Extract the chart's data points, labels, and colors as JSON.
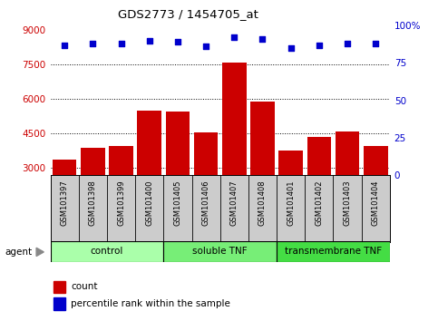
{
  "title": "GDS2773 / 1454705_at",
  "samples": [
    "GSM101397",
    "GSM101398",
    "GSM101399",
    "GSM101400",
    "GSM101405",
    "GSM101406",
    "GSM101407",
    "GSM101408",
    "GSM101401",
    "GSM101402",
    "GSM101403",
    "GSM101404"
  ],
  "counts": [
    3350,
    3900,
    3950,
    5500,
    5450,
    4550,
    7600,
    5900,
    3750,
    4350,
    4600,
    3950
  ],
  "percentiles": [
    87,
    88,
    88,
    90,
    89,
    86,
    92,
    91,
    85,
    87,
    88,
    88
  ],
  "bar_color": "#cc0000",
  "dot_color": "#0000cc",
  "ylim_left": [
    2700,
    9200
  ],
  "ylim_right": [
    0,
    100
  ],
  "yticks_left": [
    3000,
    4500,
    6000,
    7500,
    9000
  ],
  "yticks_right": [
    0,
    25,
    50,
    75,
    100
  ],
  "groups": [
    {
      "label": "control",
      "start": 0,
      "end": 4,
      "color": "#aaffaa"
    },
    {
      "label": "soluble TNF",
      "start": 4,
      "end": 8,
      "color": "#77ee77"
    },
    {
      "label": "transmembrane TNF",
      "start": 8,
      "end": 12,
      "color": "#44dd44"
    }
  ],
  "agent_label": "agent",
  "legend_count": "count",
  "legend_percentile": "percentile rank within the sample",
  "tick_label_color_left": "#cc0000",
  "tick_label_color_right": "#0000cc",
  "grid_color": "#000000",
  "sample_box_color": "#cccccc"
}
